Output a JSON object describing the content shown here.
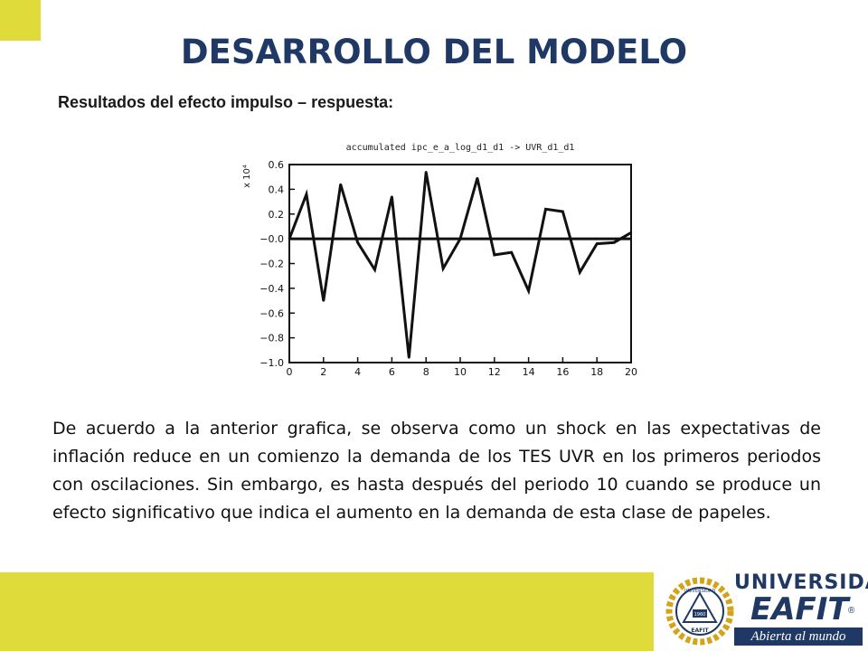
{
  "slide": {
    "title": "DESARROLLO DEL MODELO",
    "subtitle": "Resultados del efecto impulso – respuesta:",
    "paragraph": "De acuerdo a la anterior grafica, se observa como un shock en las expectativas de inflación reduce en un comienzo la demanda de los TES UVR en los primeros periodos con oscilaciones. Sin embargo, es hasta después del periodo 10 cuando se produce un efecto significativo que indica el aumento en la demanda de esta clase de papeles."
  },
  "colors": {
    "accent_yellow": "#dedb3a",
    "title_blue": "#1f3864",
    "logo_gold": "#d4a418"
  },
  "logo": {
    "name_line1": "UNIVERSIDAD",
    "name_line2": "EAFIT",
    "registered": "®",
    "tagline": "Abierta al mundo",
    "seal_text_top": "UNIVERSIDAD",
    "seal_text_bottom": "EAFIT",
    "seal_year": "1960"
  },
  "chart_data": {
    "type": "line",
    "title": "accumulated ipc_e_a_log_d1_d1 -> UVR_d1_d1",
    "ylabel": "x 10⁴",
    "xlim": [
      0,
      20
    ],
    "ylim": [
      -1.0,
      0.6
    ],
    "x_ticks": [
      0,
      2,
      4,
      6,
      8,
      10,
      12,
      14,
      16,
      18,
      20
    ],
    "y_ticks": [
      0.6,
      0.4,
      0.2,
      0.0,
      -0.2,
      -0.4,
      -0.6,
      -0.8,
      -1.0
    ],
    "y_tick_labels": [
      "0.6",
      "0.4",
      "0.2",
      "−0.0",
      "−0.2",
      "−0.4",
      "−0.6",
      "−0.8",
      "−1.0"
    ],
    "zero_line": true,
    "grid": false,
    "series": [
      {
        "x": [
          0,
          1,
          2,
          3,
          4,
          5,
          6,
          7,
          8,
          9,
          10,
          11,
          12,
          13,
          14,
          15,
          16,
          17,
          18,
          19,
          20
        ],
        "values": [
          0.0,
          0.36,
          -0.5,
          0.44,
          -0.03,
          -0.25,
          0.34,
          -0.96,
          0.54,
          -0.24,
          0.0,
          0.49,
          -0.13,
          -0.11,
          -0.42,
          0.24,
          0.22,
          -0.27,
          -0.04,
          -0.03,
          0.05
        ]
      }
    ]
  }
}
